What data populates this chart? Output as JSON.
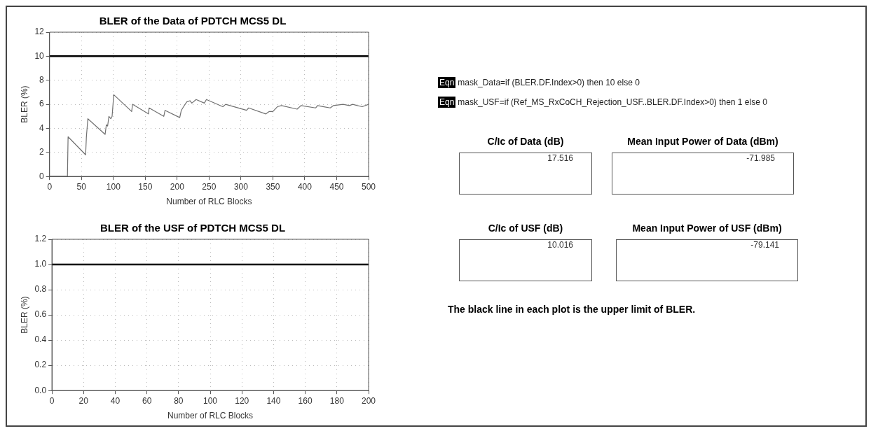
{
  "chart_data": [
    {
      "type": "line",
      "title": "BLER of the Data of PDTCH MCS5 DL",
      "xlabel": "Number of RLC Blocks",
      "ylabel": "BLER (%)",
      "xlim": [
        0,
        500
      ],
      "xticks": [
        0,
        50,
        100,
        150,
        200,
        250,
        300,
        350,
        400,
        450,
        500
      ],
      "ylim": [
        0,
        12
      ],
      "yticks": [
        0,
        2,
        4,
        6,
        8,
        10,
        12
      ],
      "grid": true,
      "marker": "none",
      "line_style": "solid",
      "ref_lines": [
        {
          "axis": "y",
          "value": 10,
          "color": "#000000"
        }
      ],
      "series": [
        {
          "color": "#707070",
          "x": [
            0,
            28,
            29,
            56.5,
            57.7,
            60,
            87,
            89,
            91,
            93,
            96,
            98,
            100.6,
            128.7,
            130,
            155,
            156,
            179,
            181,
            204,
            206.5,
            210,
            215,
            220,
            223,
            229.7,
            242.6,
            245.8,
            271.6,
            276,
            308.7,
            312,
            339,
            344,
            350,
            357,
            363.5,
            388,
            394,
            417,
            420,
            430,
            440,
            445,
            460,
            470,
            475,
            490,
            500
          ],
          "values": [
            0,
            0,
            3.3,
            1.8,
            3.3,
            4.8,
            3.5,
            4.3,
            4.2,
            5.0,
            4.8,
            5.0,
            6.8,
            5.4,
            6.0,
            5.2,
            5.7,
            5.0,
            5.5,
            4.9,
            5.5,
            5.8,
            6.2,
            6.3,
            6.1,
            6.4,
            6.1,
            6.4,
            5.8,
            6.0,
            5.5,
            5.7,
            5.2,
            5.4,
            5.4,
            5.8,
            5.9,
            5.6,
            5.9,
            5.7,
            5.9,
            5.8,
            5.7,
            5.9,
            6.0,
            5.9,
            6.0,
            5.8,
            6.0
          ]
        }
      ]
    },
    {
      "type": "line",
      "title": "BLER of the USF of PDTCH MCS5 DL",
      "xlabel": "Number of RLC Blocks",
      "ylabel": "BLER (%)",
      "xlim": [
        0,
        200
      ],
      "xticks": [
        0,
        20,
        40,
        60,
        80,
        100,
        120,
        140,
        160,
        180,
        200
      ],
      "ylim": [
        0,
        1.2
      ],
      "yticks": [
        {
          "value": 0,
          "label": "0.0"
        },
        0.2,
        0.4,
        0.6,
        0.8,
        {
          "value": 1,
          "label": "1.0"
        },
        1.2
      ],
      "grid": true,
      "ref_lines": [
        {
          "axis": "y",
          "value": 1,
          "color": "#000000"
        }
      ]
    },
    {
      "type": "other",
      "categories": [
        "C/Ic of Data (dB)",
        "Mean Input Power of Data (dBm)",
        "C/Ic of USF (dB)",
        "Mean Input Power of USF (dBm)"
      ],
      "values": [
        17.516,
        -71.985,
        10.016,
        -79.141
      ],
      "data_labels": true,
      "annotations": [
        "Eqn",
        "mask_Data=if (BLER.DF.Index>0) then 10 else 0",
        "Eqn",
        "mask_USF=if (Ref_MS_RxCoCH_Rejection_USF..BLER.DF.Index>0) then 1 else 0",
        "The black line in each plot is the upper limit of BLER."
      ]
    }
  ]
}
